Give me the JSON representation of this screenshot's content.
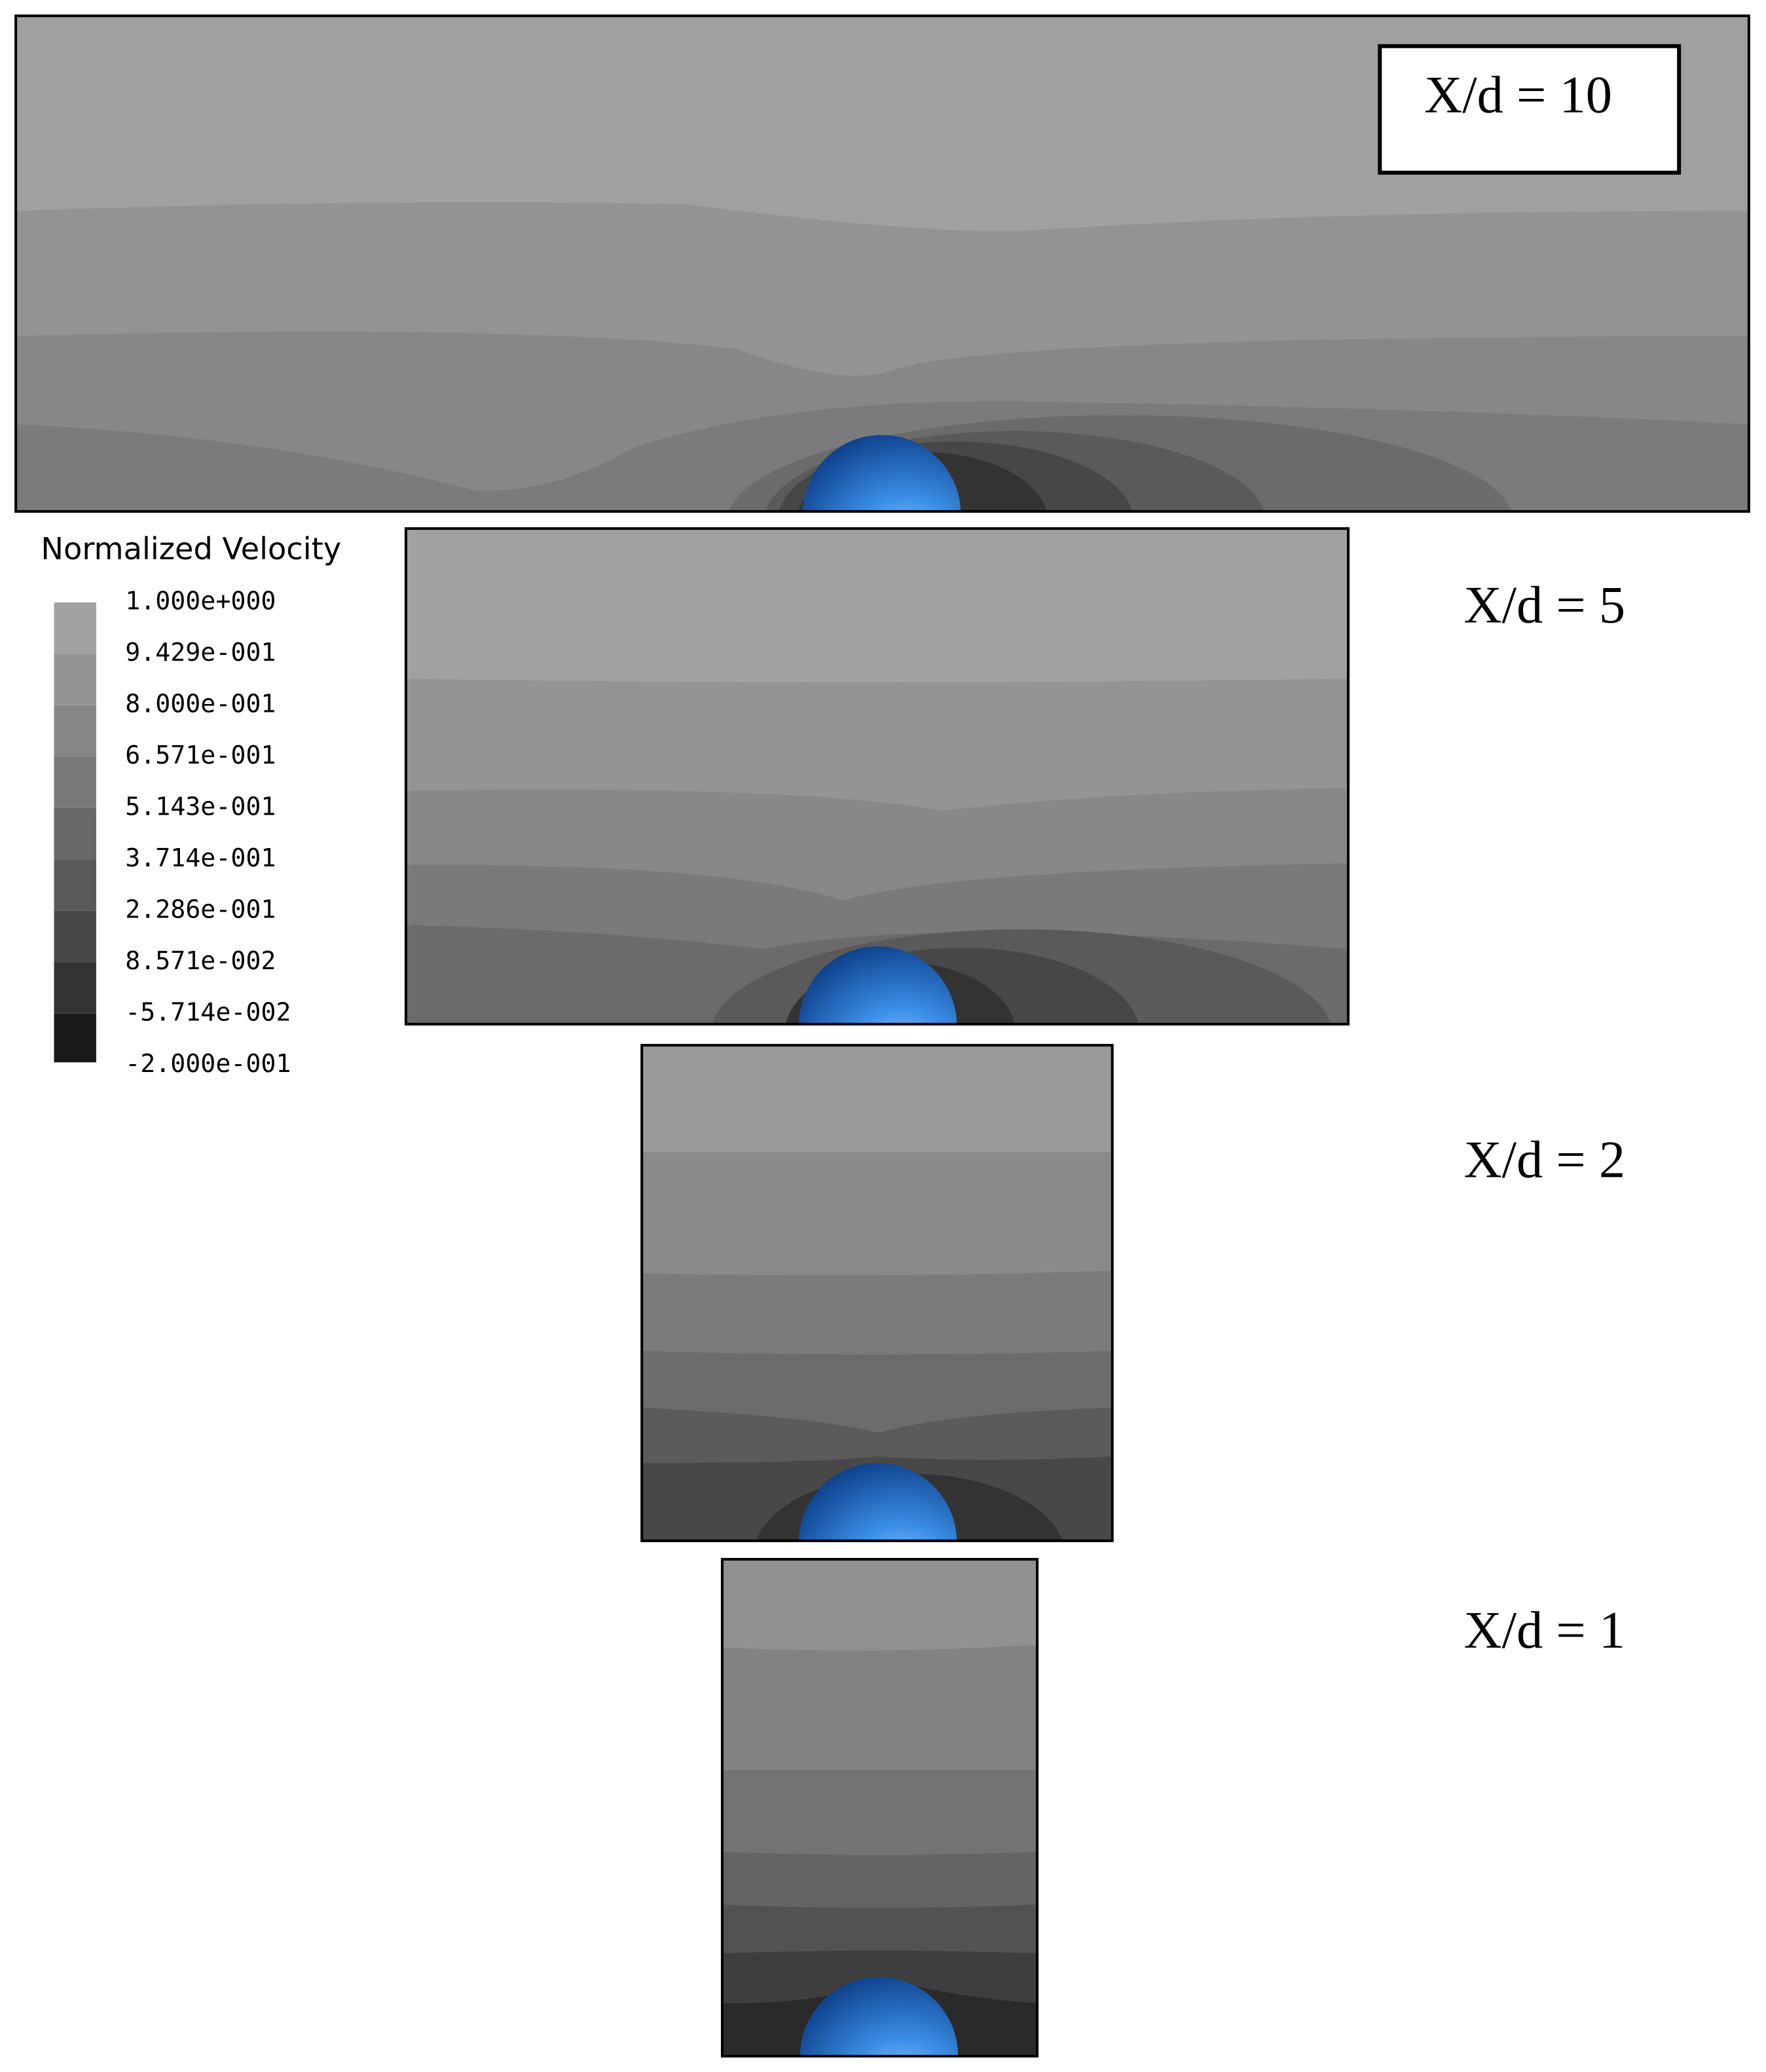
{
  "legend": {
    "title": "Normalized  Velocity",
    "labels": [
      "1.000e+000",
      "9.429e-001",
      "8.000e-001",
      "6.571e-001",
      "5.143e-001",
      "3.714e-001",
      "2.286e-001",
      "8.571e-002",
      "-5.714e-002",
      "-2.000e-001"
    ]
  },
  "panels": [
    {
      "label": "X/d = 10"
    },
    {
      "label": "X/d = 5"
    },
    {
      "label": "X/d = 2"
    },
    {
      "label": "X/d = 1"
    }
  ]
}
